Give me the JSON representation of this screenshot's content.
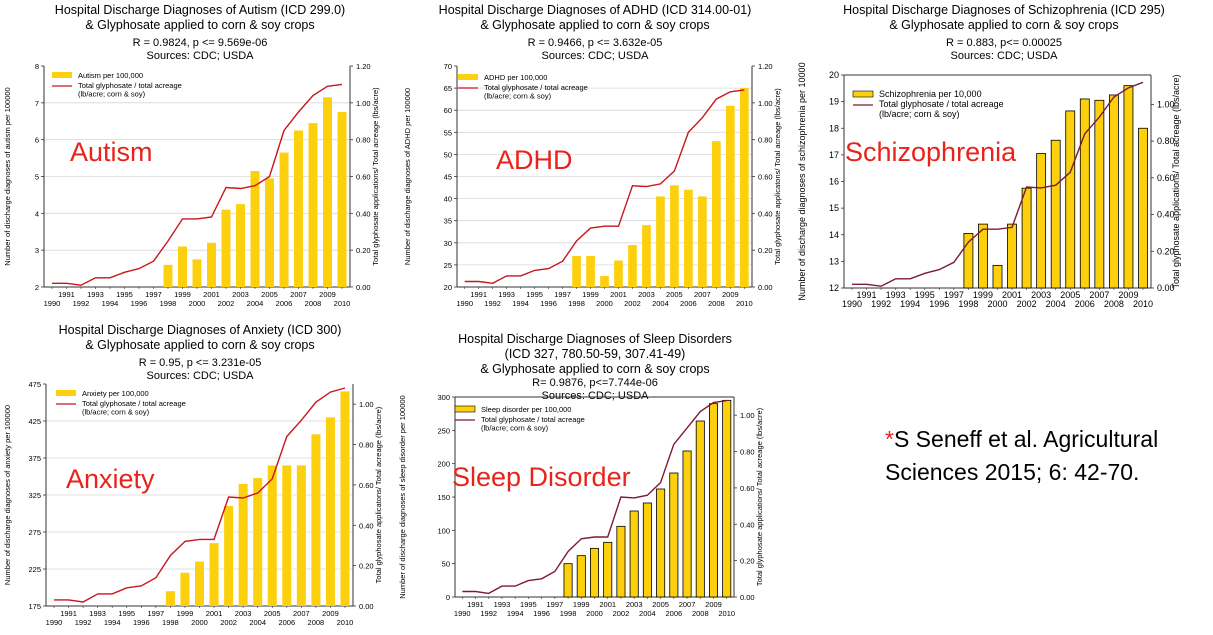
{
  "citation": {
    "star": "*",
    "text": "S Seneff et al.  Agricultural Sciences 2015; 6: 42-70."
  },
  "chart_data": [
    {
      "id": "autism",
      "type": "bar",
      "title": "Hospital Discharge Diagnoses of Autism (ICD 299.0)\n& Glyphosate applied to corn & soy crops",
      "stats": "R = 0.9824, p <= 9.569e-06\nSources: CDC; USDA",
      "overlay_label": "Autism",
      "ylabel": "Number of discharge diagnoses of autism per 100000",
      "y2label": "Total glyphosate applications/ Total acreage (lbs/acre)",
      "ylim": [
        2,
        8
      ],
      "yticks": [
        "2",
        "3",
        "4",
        "5",
        "6",
        "7",
        "8"
      ],
      "y2lim": [
        0,
        1.2
      ],
      "y2ticks": [
        "0.00",
        "0.20",
        "0.40",
        "0.60",
        "0.80",
        "1.00",
        "1.20"
      ],
      "categories": [
        "1990",
        "1991",
        "1992",
        "1993",
        "1994",
        "1995",
        "1996",
        "1997",
        "1998",
        "1999",
        "2000",
        "2001",
        "2002",
        "2003",
        "2004",
        "2005",
        "2006",
        "2007",
        "2008",
        "2009",
        "2010"
      ],
      "bar_series": {
        "name": "Autism  per 100,000",
        "values": [
          null,
          null,
          null,
          null,
          null,
          null,
          null,
          null,
          2.6,
          3.1,
          2.75,
          3.2,
          4.1,
          4.25,
          5.15,
          4.95,
          5.65,
          6.25,
          6.45,
          7.15,
          6.75
        ]
      },
      "line_series": {
        "name": "Total glyphosate / total acreage\n(lb/acre; corn & soy)",
        "values": [
          0.02,
          0.02,
          0.01,
          0.05,
          0.05,
          0.08,
          0.1,
          0.14,
          0.25,
          0.37,
          0.37,
          0.38,
          0.54,
          0.535,
          0.55,
          0.6,
          0.85,
          0.95,
          1.04,
          1.09,
          1.1
        ]
      },
      "style": {
        "bar": "#fdd00d",
        "bar_edge": "#fdd00d",
        "line": "#c8161d",
        "grid": true
      }
    },
    {
      "id": "adhd",
      "type": "bar",
      "title": "Hospital Discharge Diagnoses of ADHD (ICD 314.00-01)\n& Glyphosate applied to corn & soy crops",
      "stats": "R = 0.9466, p <= 3.632e-05\nSources: CDC; USDA",
      "overlay_label": "ADHD",
      "ylabel": "Number of discharge diagnoses of ADHD per 100000",
      "y2label": "Total glyphosate applicatons/ Total acreage (lbs/acre)",
      "ylim": [
        20,
        70
      ],
      "yticks": [
        "20",
        "25",
        "30",
        "35",
        "40",
        "45",
        "50",
        "55",
        "60",
        "65",
        "70"
      ],
      "y2lim": [
        0,
        1.2
      ],
      "y2ticks": [
        "0.00",
        "0.20",
        "0.40",
        "0.60",
        "0.80",
        "1.00",
        "1.20"
      ],
      "categories": [
        "1990",
        "1991",
        "1992",
        "1993",
        "1994",
        "1995",
        "1996",
        "1997",
        "1998",
        "1999",
        "2000",
        "2001",
        "2002",
        "2003",
        "2004",
        "2005",
        "2006",
        "2007",
        "2008",
        "2009",
        "2010"
      ],
      "bar_series": {
        "name": "ADHD per 100,000",
        "values": [
          null,
          null,
          null,
          null,
          null,
          null,
          null,
          null,
          27,
          27,
          22.5,
          26,
          29.5,
          34,
          40.5,
          43,
          42,
          40.5,
          53,
          61,
          65
        ]
      },
      "line_series": {
        "name": "Total glyphosate / total acreage\n(lb/acre; corn & soy)",
        "values": [
          0.03,
          0.03,
          0.02,
          0.06,
          0.06,
          0.09,
          0.1,
          0.14,
          0.25,
          0.32,
          0.33,
          0.33,
          0.55,
          0.545,
          0.56,
          0.63,
          0.84,
          0.92,
          1.02,
          1.06,
          1.07
        ]
      },
      "style": {
        "bar": "#fdd00d",
        "bar_edge": "#fdd00d",
        "line": "#c8161d",
        "grid": true
      }
    },
    {
      "id": "schizophrenia",
      "type": "bar",
      "title": "Hospital Discharge Diagnoses of Schizophrenia (ICD 295)\n& Glyphosate applied to corn & soy crops",
      "stats": "R = 0.883, p<= 0.00025\nSources: CDC; USDA",
      "overlay_label": "Schizophrenia",
      "ylabel": "Number of discharge diagnoses of schizophrenia per 10000",
      "y2label": "Total glyphosate applications/ Total acreage (lbs/acre)",
      "ylim": [
        12,
        20
      ],
      "yticks": [
        "12",
        "13",
        "14",
        "15",
        "16",
        "17",
        "18",
        "19",
        "20"
      ],
      "y2lim": [
        0,
        1.16
      ],
      "y2ticks": [
        "0.00",
        "0.20",
        "0.40",
        "0.60",
        "0.80",
        "1.00"
      ],
      "categories": [
        "1990",
        "1991",
        "1992",
        "1993",
        "1994",
        "1995",
        "1996",
        "1997",
        "1998",
        "1999",
        "2000",
        "2001",
        "2002",
        "2003",
        "2004",
        "2005",
        "2006",
        "2007",
        "2008",
        "2009",
        "2010"
      ],
      "bar_series": {
        "name": "Schizophrenia per 10,000",
        "values": [
          null,
          null,
          null,
          null,
          null,
          null,
          null,
          null,
          14.05,
          14.4,
          12.85,
          14.4,
          15.75,
          17.05,
          17.55,
          18.65,
          19.1,
          19.05,
          19.25,
          19.6,
          18
        ]
      },
      "line_series": {
        "name": "Total glyphosate / total acreage\n(lb/acre; corn & soy)",
        "values": [
          0.02,
          0.02,
          0.01,
          0.05,
          0.05,
          0.08,
          0.1,
          0.14,
          0.25,
          0.32,
          0.32,
          0.33,
          0.55,
          0.545,
          0.56,
          0.63,
          0.84,
          0.93,
          1.04,
          1.09,
          1.12
        ]
      },
      "style": {
        "bar": "#fdd00d",
        "bar_edge": "#000000",
        "line": "#7b1b36",
        "grid": false
      }
    },
    {
      "id": "anxiety",
      "type": "bar",
      "title": "Hospital Discharge Diagnoses of Anxiety (ICD 300)\n& Glyphosate applied to corn & soy crops",
      "stats": "R = 0.95, p <= 3.231e-05\nSources: CDC; USDA",
      "overlay_label": "Anxiety",
      "ylabel": "Number of discharge diagnoses of anxiety per 100000",
      "y2label": "Total glyphosate applicatons/ Total acreage (lbs/acre)",
      "ylim": [
        175,
        475
      ],
      "yticks": [
        "175",
        "225",
        "275",
        "325",
        "375",
        "425",
        "475"
      ],
      "y2lim": [
        0,
        1.1
      ],
      "y2ticks": [
        "0.00",
        "0.20",
        "0.40",
        "0.60",
        "0.80",
        "1.00"
      ],
      "categories": [
        "1990",
        "1991",
        "1992",
        "1993",
        "1994",
        "1995",
        "1996",
        "1997",
        "1998",
        "1999",
        "2000",
        "2001",
        "2002",
        "2003",
        "2004",
        "2005",
        "2006",
        "2007",
        "2008",
        "2009",
        "2010"
      ],
      "bar_series": {
        "name": "Anxiety per 100,000",
        "values": [
          null,
          null,
          null,
          null,
          null,
          null,
          null,
          null,
          195,
          220,
          235,
          260,
          310,
          340,
          348,
          365,
          365,
          365,
          407,
          430,
          465
        ]
      },
      "line_series": {
        "name": "Total glyphosate / total acreage\n(lb/acre; corn & soy)",
        "values": [
          0.03,
          0.03,
          0.02,
          0.06,
          0.06,
          0.09,
          0.1,
          0.14,
          0.25,
          0.32,
          0.33,
          0.33,
          0.54,
          0.535,
          0.56,
          0.63,
          0.84,
          0.92,
          1.01,
          1.06,
          1.08
        ]
      },
      "style": {
        "bar": "#fdd00d",
        "bar_edge": "#fdd00d",
        "line": "#c8161d",
        "grid": true
      }
    },
    {
      "id": "sleep",
      "type": "bar",
      "title": "Hospital Discharge Diagnoses of Sleep Disorders\n(ICD 327, 780.50-59, 307.41-49)\n& Glyphosate applied to corn & soy crops",
      "stats": "R= 0.9876, p<=7.744e-06\nSources: CDC; USDA",
      "overlay_label": "Sleep Disorder",
      "ylabel": "Number of discharge diagnoses of sleep disorder per 100000",
      "y2label": "Total glyphosate applications/ Total acreage (lbs/acre)",
      "ylim": [
        0,
        300
      ],
      "yticks": [
        "0",
        "50",
        "100",
        "150",
        "200",
        "250",
        "300"
      ],
      "y2lim": [
        0,
        1.1
      ],
      "y2ticks": [
        "0.00",
        "0.20",
        "0.40",
        "0.60",
        "0.80",
        "1.00"
      ],
      "categories": [
        "1990",
        "1991",
        "1992",
        "1993",
        "1994",
        "1995",
        "1996",
        "1997",
        "1998",
        "1999",
        "2000",
        "2001",
        "2002",
        "2003",
        "2004",
        "2005",
        "2006",
        "2007",
        "2008",
        "2009",
        "2010"
      ],
      "bar_series": {
        "name": "Sleep disorder per 100,000",
        "values": [
          null,
          null,
          null,
          null,
          null,
          null,
          null,
          null,
          50,
          62,
          73,
          82,
          106,
          129,
          141,
          162,
          186,
          219,
          264,
          290,
          295
        ]
      },
      "line_series": {
        "name": "Total glyphosate / total acreage\n(lb/acre; corn & soy)",
        "values": [
          0.03,
          0.03,
          0.02,
          0.06,
          0.06,
          0.09,
          0.1,
          0.14,
          0.25,
          0.32,
          0.33,
          0.33,
          0.55,
          0.545,
          0.56,
          0.63,
          0.84,
          0.93,
          1.02,
          1.07,
          1.08
        ]
      },
      "style": {
        "bar": "#fdd00d",
        "bar_edge": "#000000",
        "line": "#7b1b36",
        "grid": false
      }
    }
  ]
}
